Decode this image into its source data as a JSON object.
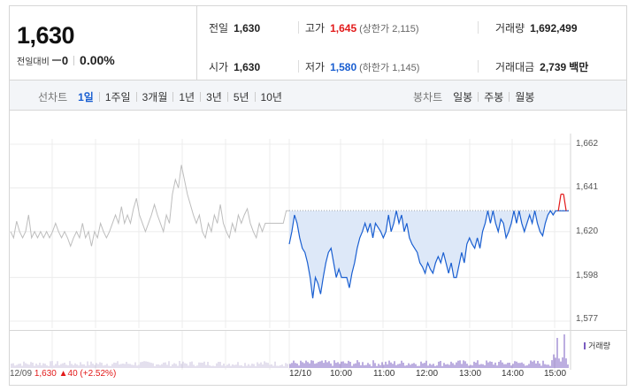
{
  "summary": {
    "price": "1,630",
    "change_label": "전일대비",
    "change_value": "0",
    "change_pct": "0.00%",
    "prev_close_label": "전일",
    "prev_close": "1,630",
    "open_label": "시가",
    "open": "1,630",
    "high_label": "고가",
    "high": "1,645",
    "upper_limit": "(상한가 2,115)",
    "low_label": "저가",
    "low": "1,580",
    "lower_limit": "(하한가 1,145)",
    "volume_label": "거래량",
    "volume": "1,692,499",
    "turnover_label": "거래대금",
    "turnover": "2,739",
    "turnover_unit": "백만"
  },
  "line_tabs": {
    "title": "선차트",
    "items": [
      "1일",
      "1주일",
      "3개월",
      "1년",
      "3년",
      "5년",
      "10년"
    ],
    "active_index": 0
  },
  "candle_tabs": {
    "title": "봉차트",
    "items": [
      "일봉",
      "주봉",
      "월봉"
    ]
  },
  "volume_legend": "거래량",
  "footer": {
    "date": "12/09",
    "price": "1,630",
    "change": "▲40 (+2.52%)"
  },
  "colors": {
    "up": "#e21a1a",
    "down": "#1a5fd1",
    "prev_line": "#bdbdbd",
    "fill": "#dde8f8",
    "volume_prev": "#c9c0de",
    "volume_today": "#7a5cc0"
  },
  "chart_data": {
    "type": "line",
    "y_ticks": [
      "1,662",
      "1,641",
      "1,620",
      "1,598",
      "1,577"
    ],
    "ylim": [
      1577,
      1662
    ],
    "x_ticks": [
      "12/10",
      "10:00",
      "11:00",
      "12:00",
      "13:00",
      "14:00",
      "15:00"
    ],
    "reference_price": 1630,
    "series": [
      {
        "name": "12/09",
        "values": [
          1620,
          1617,
          1625,
          1620,
          1617,
          1620,
          1628,
          1617,
          1620,
          1617,
          1620,
          1617,
          1620,
          1617,
          1620,
          1624,
          1620,
          1617,
          1620,
          1617,
          1613,
          1617,
          1620,
          1617,
          1624,
          1617,
          1620,
          1613,
          1620,
          1617,
          1624,
          1620,
          1617,
          1620,
          1624,
          1628,
          1624,
          1632,
          1624,
          1628,
          1624,
          1631,
          1636,
          1628,
          1624,
          1620,
          1624,
          1628,
          1633,
          1628,
          1624,
          1620,
          1628,
          1624,
          1638,
          1645,
          1641,
          1652,
          1645,
          1638,
          1633,
          1628,
          1624,
          1628,
          1620,
          1617,
          1624,
          1620,
          1628,
          1624,
          1633,
          1624,
          1620,
          1617,
          1624,
          1620,
          1628,
          1624,
          1628,
          1631,
          1624,
          1620,
          1617,
          1624,
          1620,
          1624,
          1624,
          1624,
          1624,
          1624,
          1624,
          1624,
          1630,
          1630
        ]
      },
      {
        "name": "12/10",
        "values": [
          1614,
          1620,
          1628,
          1624,
          1617,
          1612,
          1610,
          1605,
          1598,
          1588,
          1598,
          1595,
          1590,
          1598,
          1605,
          1610,
          1612,
          1605,
          1598,
          1602,
          1598,
          1598,
          1598,
          1593,
          1600,
          1605,
          1612,
          1617,
          1620,
          1624,
          1620,
          1624,
          1617,
          1624,
          1622,
          1620,
          1617,
          1620,
          1628,
          1620,
          1624,
          1630,
          1624,
          1628,
          1620,
          1624,
          1617,
          1614,
          1612,
          1610,
          1605,
          1603,
          1600,
          1605,
          1602,
          1600,
          1605,
          1608,
          1605,
          1610,
          1605,
          1600,
          1605,
          1598,
          1598,
          1604,
          1610,
          1605,
          1614,
          1617,
          1614,
          1612,
          1617,
          1612,
          1620,
          1624,
          1630,
          1624,
          1630,
          1624,
          1620,
          1626,
          1624,
          1617,
          1620,
          1624,
          1630,
          1624,
          1630,
          1624,
          1620,
          1624,
          1628,
          1624,
          1630,
          1624,
          1620,
          1618,
          1624,
          1628,
          1630,
          1628,
          1630,
          1630,
          1638,
          1638,
          1630,
          1630
        ]
      }
    ],
    "volume_today_peak_index": 104,
    "grid": true
  }
}
